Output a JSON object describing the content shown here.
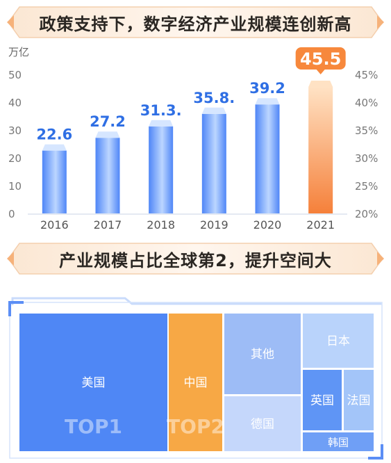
{
  "banners": {
    "top": "政策支持下，数字经济产业规模连创新高",
    "middle": "产业规模占比全球第2，提升空间大"
  },
  "chart_data": [
    {
      "type": "bar",
      "ylabel": "万亿",
      "categories": [
        "2016",
        "2017",
        "2018",
        "2019",
        "2020",
        "2021"
      ],
      "values": [
        22.6,
        27.2,
        31.3,
        35.8,
        39.2,
        45.5
      ],
      "data_labels": [
        "22.6",
        "27.2",
        "31.3.",
        "35.8.",
        "39.2",
        "45.5"
      ],
      "highlight_index": 5,
      "ylim": [
        0,
        50
      ],
      "yticks": [
        "0",
        "10",
        "20",
        "30",
        "40",
        "50"
      ],
      "y2ticks": [
        "20%",
        "25%",
        "30%",
        "35%",
        "40%",
        "45%"
      ],
      "colors": {
        "bar_light": "#bcd6ff",
        "bar_dark": "#4f86f7",
        "bar_top": "#d6e6ff",
        "highlight_light": "#ffe2c4",
        "highlight_dark": "#f5803a",
        "label": "#2f6fe4",
        "badge": "#f7883c"
      }
    },
    {
      "type": "treemap",
      "items": [
        {
          "label": "美国",
          "badge": "TOP1",
          "color": "#4f87f5"
        },
        {
          "label": "中国",
          "badge": "TOP2",
          "color": "#f7a845"
        },
        {
          "label": "其他",
          "color": "#9dbcf6"
        },
        {
          "label": "日本",
          "color": "#b9d3fb"
        },
        {
          "label": "德国",
          "color": "#c5d7fb"
        },
        {
          "label": "英国",
          "color": "#5f95f5"
        },
        {
          "label": "法国",
          "color": "#a3c5f9"
        },
        {
          "label": "韩国",
          "color": "#6f9ff6"
        }
      ]
    }
  ]
}
